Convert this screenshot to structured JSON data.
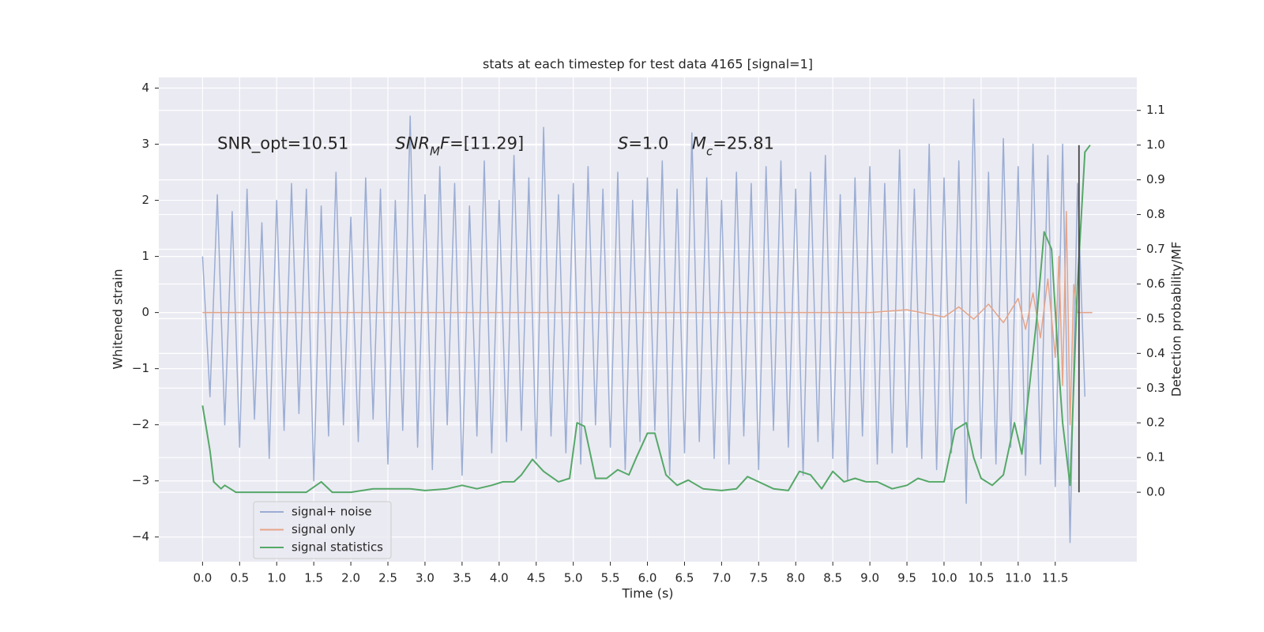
{
  "chart_data": {
    "type": "line",
    "title": "stats at each timestep for test data 4165 [signal=1]",
    "xlabel": "Time (s)",
    "ylabel": "Whitened strain",
    "y2label": "Detection probability/MF",
    "xlim": [
      -0.59,
      12.6
    ],
    "ylim": [
      -4.44,
      4.19
    ],
    "y2lim": [
      -0.2,
      1.195
    ],
    "grid": true,
    "legend": "lower left",
    "xticks": [
      {
        "value": 0,
        "label": "0.0"
      },
      {
        "value": 0.5,
        "label": "0.5"
      },
      {
        "value": 1,
        "label": "1.0"
      },
      {
        "value": 1.5,
        "label": "1.5"
      },
      {
        "value": 2,
        "label": "2.0"
      },
      {
        "value": 2.5,
        "label": "2.5"
      },
      {
        "value": 3,
        "label": "3.0"
      },
      {
        "value": 3.5,
        "label": "3.5"
      },
      {
        "value": 4,
        "label": "4.0"
      },
      {
        "value": 4.5,
        "label": "4.5"
      },
      {
        "value": 5,
        "label": "5.0"
      },
      {
        "value": 5.5,
        "label": "5.5"
      },
      {
        "value": 6,
        "label": "6.0"
      },
      {
        "value": 6.5,
        "label": "6.5"
      },
      {
        "value": 7,
        "label": "7.0"
      },
      {
        "value": 7.5,
        "label": "7.5"
      },
      {
        "value": 8,
        "label": "8.0"
      },
      {
        "value": 8.5,
        "label": "8.5"
      },
      {
        "value": 9,
        "label": "9.0"
      },
      {
        "value": 9.5,
        "label": "9.5"
      },
      {
        "value": 10,
        "label": "10.0"
      },
      {
        "value": 10.5,
        "label": "10.5"
      },
      {
        "value": 11,
        "label": "11.0"
      },
      {
        "value": 11.5,
        "label": "11.5"
      }
    ],
    "yticks": [
      {
        "value": -4,
        "label": "−4"
      },
      {
        "value": -3,
        "label": "−3"
      },
      {
        "value": -2,
        "label": "−2"
      },
      {
        "value": -1,
        "label": "−1"
      },
      0,
      1,
      2,
      3,
      4
    ],
    "y2ticks": [
      {
        "value": 0,
        "label": "0.0"
      },
      {
        "value": 0.1,
        "label": "0.1"
      },
      {
        "value": 0.2,
        "label": "0.2"
      },
      {
        "value": 0.3,
        "label": "0.3"
      },
      {
        "value": 0.4,
        "label": "0.4"
      },
      {
        "value": 0.5,
        "label": "0.5"
      },
      {
        "value": 0.6,
        "label": "0.6"
      },
      {
        "value": 0.7,
        "label": "0.7"
      },
      {
        "value": 0.8,
        "label": "0.8"
      },
      {
        "value": 0.9,
        "label": "0.9"
      },
      {
        "value": 1,
        "label": "1.0"
      },
      {
        "value": 1.1,
        "label": "1.1"
      }
    ],
    "series": [
      {
        "name": "signal+ noise",
        "color": "#9badd3",
        "x": [
          0,
          0.1,
          0.2,
          0.3,
          0.4,
          0.5,
          0.6,
          0.7,
          0.8,
          0.9,
          1,
          1.1,
          1.2,
          1.3,
          1.4,
          1.5,
          1.6,
          1.7,
          1.8,
          1.9,
          2,
          2.1,
          2.2,
          2.3,
          2.4,
          2.5,
          2.6,
          2.7,
          2.8,
          2.9,
          3,
          3.1,
          3.2,
          3.3,
          3.4,
          3.5,
          3.6,
          3.7,
          3.8,
          3.9,
          4,
          4.1,
          4.2,
          4.3,
          4.4,
          4.5,
          4.6,
          4.7,
          4.8,
          4.9,
          5,
          5.1,
          5.2,
          5.3,
          5.4,
          5.5,
          5.6,
          5.7,
          5.8,
          5.9,
          6,
          6.1,
          6.2,
          6.3,
          6.4,
          6.5,
          6.6,
          6.7,
          6.8,
          6.9,
          7,
          7.1,
          7.2,
          7.3,
          7.4,
          7.5,
          7.6,
          7.7,
          7.8,
          7.9,
          8,
          8.1,
          8.2,
          8.3,
          8.4,
          8.5,
          8.6,
          8.7,
          8.8,
          8.9,
          9,
          9.1,
          9.2,
          9.3,
          9.4,
          9.5,
          9.6,
          9.7,
          9.8,
          9.9,
          10,
          10.1,
          10.2,
          10.3,
          10.4,
          10.5,
          10.6,
          10.7,
          10.8,
          10.9,
          11,
          11.1,
          11.2,
          11.3,
          11.4,
          11.5,
          11.6,
          11.7,
          11.8,
          11.9
        ],
        "values": [
          1.0,
          -1.5,
          2.1,
          -2.0,
          1.8,
          -2.4,
          2.2,
          -1.9,
          1.6,
          -2.6,
          2.0,
          -2.1,
          2.3,
          -1.8,
          2.2,
          -3.0,
          1.9,
          -2.2,
          2.5,
          -2.0,
          1.7,
          -2.3,
          2.4,
          -1.9,
          2.2,
          -2.7,
          2.0,
          -2.1,
          3.5,
          -2.4,
          2.1,
          -2.8,
          2.6,
          -2.0,
          2.3,
          -2.9,
          1.9,
          -2.2,
          2.7,
          -2.5,
          2.0,
          -2.3,
          2.8,
          -2.1,
          2.4,
          -2.6,
          3.3,
          -2.2,
          2.1,
          -2.5,
          2.3,
          -2.7,
          2.6,
          -2.0,
          2.2,
          -2.4,
          2.5,
          -2.8,
          2.0,
          -2.3,
          2.4,
          -2.1,
          2.7,
          -2.9,
          2.2,
          -2.5,
          3.2,
          -2.3,
          2.4,
          -2.6,
          2.0,
          -2.7,
          2.5,
          -2.2,
          2.3,
          -2.8,
          2.6,
          -2.1,
          2.7,
          -2.4,
          2.2,
          -2.9,
          2.5,
          -2.3,
          2.8,
          -2.6,
          2.1,
          -3.0,
          2.4,
          -2.2,
          2.6,
          -2.7,
          2.3,
          -2.5,
          2.9,
          -2.4,
          2.2,
          -2.6,
          3.0,
          -2.8,
          2.4,
          -2.5,
          2.7,
          -3.4,
          3.8,
          -2.6,
          2.5,
          -2.7,
          3.1,
          -2.4,
          2.6,
          -2.9,
          3.0,
          -2.7,
          2.8,
          -3.1,
          3.0,
          -4.1,
          2.3,
          -1.5
        ]
      },
      {
        "name": "signal only",
        "color": "#e6a488",
        "x": [
          0,
          1,
          2,
          3,
          4,
          5,
          6,
          7,
          8,
          9,
          9.5,
          10,
          10.2,
          10.4,
          10.6,
          10.8,
          11.0,
          11.1,
          11.2,
          11.3,
          11.4,
          11.5,
          11.55,
          11.6,
          11.65,
          11.7,
          11.75,
          11.8,
          12.0
        ],
        "values": [
          0,
          0,
          0,
          0,
          0,
          0,
          0,
          0,
          0,
          0,
          0.05,
          -0.08,
          0.1,
          -0.12,
          0.15,
          -0.18,
          0.25,
          -0.3,
          0.35,
          -0.45,
          0.6,
          -0.8,
          1.0,
          -1.3,
          1.8,
          -2.0,
          0.5,
          0,
          0
        ]
      },
      {
        "name": "signal statistics",
        "color": "#55a868",
        "axis": "y2",
        "x": [
          0,
          0.1,
          0.15,
          0.25,
          0.3,
          0.45,
          0.6,
          0.8,
          1.0,
          1.2,
          1.4,
          1.6,
          1.75,
          2.0,
          2.3,
          2.6,
          2.8,
          3.0,
          3.3,
          3.5,
          3.7,
          3.9,
          4.05,
          4.2,
          4.3,
          4.45,
          4.6,
          4.8,
          4.95,
          5.05,
          5.15,
          5.3,
          5.45,
          5.6,
          5.75,
          5.85,
          6.0,
          6.1,
          6.25,
          6.4,
          6.55,
          6.75,
          7.0,
          7.2,
          7.35,
          7.5,
          7.7,
          7.9,
          8.05,
          8.2,
          8.35,
          8.5,
          8.65,
          8.8,
          8.95,
          9.1,
          9.3,
          9.5,
          9.65,
          9.8,
          10.0,
          10.15,
          10.3,
          10.4,
          10.5,
          10.65,
          10.8,
          10.95,
          11.05,
          11.15,
          11.25,
          11.35,
          11.45,
          11.55,
          11.6,
          11.7,
          11.8,
          11.9,
          11.97
        ],
        "values": [
          0.25,
          0.12,
          0.03,
          0.01,
          0.02,
          0.0,
          0.0,
          0.0,
          0.0,
          0.0,
          0.0,
          0.03,
          0.0,
          0.0,
          0.01,
          0.01,
          0.01,
          0.005,
          0.01,
          0.02,
          0.01,
          0.02,
          0.03,
          0.03,
          0.05,
          0.095,
          0.06,
          0.03,
          0.04,
          0.2,
          0.19,
          0.04,
          0.04,
          0.065,
          0.05,
          0.1,
          0.17,
          0.17,
          0.05,
          0.02,
          0.035,
          0.01,
          0.005,
          0.01,
          0.045,
          0.03,
          0.01,
          0.005,
          0.06,
          0.05,
          0.01,
          0.06,
          0.03,
          0.04,
          0.03,
          0.03,
          0.01,
          0.02,
          0.04,
          0.03,
          0.03,
          0.18,
          0.2,
          0.1,
          0.04,
          0.02,
          0.05,
          0.2,
          0.11,
          0.3,
          0.5,
          0.75,
          0.7,
          0.35,
          0.2,
          0.02,
          0.6,
          0.98,
          1.0
        ]
      }
    ],
    "vlines": [
      {
        "x": 11.82,
        "ymin": 0,
        "ymax": 1.0,
        "axis": "y2",
        "color": "#444444"
      }
    ],
    "annotations": [
      {
        "x": 0.2,
        "y": 3,
        "parts": [
          {
            "text": "SNR_opt=10.51"
          }
        ]
      },
      {
        "x": 2.6,
        "y": 3,
        "parts": [
          {
            "text": "SNR",
            "italic": true
          },
          {
            "text": "M",
            "italic": true,
            "sub": true
          },
          {
            "text": "F",
            "italic": true
          },
          {
            "text": "=[11.29]"
          }
        ]
      },
      {
        "x": 5.6,
        "y": 3,
        "parts": [
          {
            "text": "S",
            "italic": true
          },
          {
            "text": "=1.0"
          }
        ]
      },
      {
        "x": 6.6,
        "y": 3,
        "parts": [
          {
            "text": "M",
            "italic": true
          },
          {
            "text": "c",
            "italic": true,
            "sub": true
          },
          {
            "text": "=25.81"
          }
        ]
      }
    ]
  }
}
